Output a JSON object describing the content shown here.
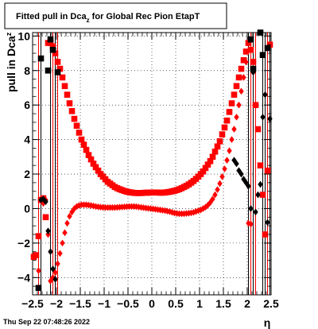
{
  "chart_data": {
    "type": "scatter",
    "title_main": "Fitted pull in Dca",
    "title_sub": "z",
    "title_rest": " for Global Rec Pion EtapT",
    "ylabel_main": "pull in Dca",
    "ylabel_sub": "z",
    "xlabel": "η",
    "footer": "Thu Sep 22 07:48:26 2022",
    "xlim": [
      -2.5,
      2.5
    ],
    "ylim": [
      -5,
      10.2
    ],
    "xticks": [
      -2.5,
      -2,
      -1.5,
      -1,
      -0.5,
      0,
      0.5,
      1,
      1.5,
      2,
      2.5
    ],
    "xtick_labels": [
      "−2.5",
      "−2",
      "−1.5",
      "−1",
      "−0.5",
      "0",
      "0.5",
      "1",
      "1.5",
      "2",
      "2.5"
    ],
    "yticks": [
      -4,
      -2,
      0,
      2,
      4,
      6,
      8,
      10
    ],
    "ytick_labels": [
      "−4",
      "−2",
      "0",
      "2",
      "4",
      "6",
      "8",
      "10"
    ],
    "grid": true,
    "colors": {
      "red": "#ff0000",
      "black": "#000000"
    },
    "series": [
      {
        "marker": "square",
        "color": "#ff0000",
        "x": [
          -2.475,
          -2.425,
          -2.375,
          -2.325,
          -2.275,
          -2.225,
          -2.175,
          -2.125,
          -2.075,
          -2.025,
          -1.975,
          -1.925,
          -1.875,
          -1.825,
          -1.775,
          -1.725,
          -1.675,
          -1.625,
          -1.575,
          -1.525,
          -1.475,
          -1.425,
          -1.375,
          -1.325,
          -1.275,
          -1.225,
          -1.175,
          -1.125,
          -1.075,
          -1.025,
          -0.975,
          -0.925,
          -0.875,
          -0.825,
          -0.775,
          -0.725,
          -0.675,
          -0.625,
          -0.575,
          -0.525,
          -0.475,
          -0.425,
          -0.375,
          -0.325,
          -0.275,
          -0.225,
          -0.175,
          -0.125,
          -0.075,
          -0.025,
          0.025,
          0.075,
          0.125,
          0.175,
          0.225,
          0.275,
          0.325,
          0.375,
          0.425,
          0.475,
          0.525,
          0.575,
          0.625,
          0.675,
          0.725,
          0.775,
          0.825,
          0.875,
          0.925,
          0.975,
          1.025,
          1.075,
          1.125,
          1.175,
          1.225,
          1.275,
          1.325,
          1.375,
          1.425,
          1.475,
          1.525,
          1.575,
          1.625,
          1.675,
          1.725,
          1.775,
          1.825,
          1.875,
          1.925,
          1.975,
          2.025,
          2.075,
          2.125,
          2.175,
          2.225,
          2.275,
          2.325,
          2.375,
          2.425,
          2.475
        ],
        "y": [
          -2.8,
          -2.7,
          -1.6,
          0.5,
          0.6,
          -0.5,
          9.6,
          9.6,
          9.4,
          9.0,
          8.5,
          8.1,
          7.6,
          7.1,
          6.6,
          6.1,
          5.65,
          5.2,
          4.8,
          4.4,
          4.0,
          3.7,
          3.4,
          3.1,
          2.85,
          2.6,
          2.4,
          2.2,
          2.0,
          1.85,
          1.7,
          1.55,
          1.45,
          1.35,
          1.25,
          1.18,
          1.12,
          1.07,
          1.02,
          0.98,
          0.95,
          0.93,
          0.91,
          0.9,
          0.9,
          0.9,
          0.91,
          0.92,
          0.92,
          0.93,
          0.93,
          0.93,
          0.93,
          0.92,
          0.92,
          0.93,
          0.95,
          0.97,
          1.0,
          1.03,
          1.07,
          1.12,
          1.18,
          1.25,
          1.32,
          1.4,
          1.5,
          1.6,
          1.72,
          1.85,
          2.0,
          2.15,
          2.35,
          2.55,
          2.75,
          3.0,
          3.3,
          3.6,
          3.9,
          4.3,
          4.7,
          5.1,
          5.6,
          6.1,
          6.6,
          7.1,
          7.6,
          8.1,
          8.6,
          9.1,
          9.6,
          9.2,
          8.5,
          6.0,
          4.6,
          2.5,
          0.8,
          -1.5,
          2.2,
          9.5
        ]
      },
      {
        "marker": "square",
        "color": "#000000",
        "x": [
          -2.375,
          -2.325,
          -2.175,
          -2.125,
          -2.075,
          -1.975,
          2.075,
          2.125,
          2.275,
          2.325,
          2.425
        ],
        "y": [
          -4.6,
          8.7,
          8.0,
          9.8,
          9.2,
          7.9,
          9.8,
          8.1,
          10.2,
          8.9,
          9.3
        ]
      },
      {
        "marker": "diamond",
        "color": "#ff0000",
        "x": [
          -2.375,
          -2.325,
          -2.275,
          -2.225,
          -2.175,
          -2.125,
          -2.075,
          -2.025,
          -1.975,
          -1.925,
          -1.875,
          -1.825,
          -1.775,
          -1.725,
          -1.675,
          -1.625,
          -1.575,
          -1.525,
          -1.475,
          -1.425,
          -1.375,
          -1.325,
          -1.275,
          -1.225,
          -1.175,
          -1.125,
          -1.075,
          -1.025,
          -0.975,
          -0.925,
          -0.875,
          -0.825,
          -0.775,
          -0.725,
          -0.675,
          -0.625,
          -0.575,
          -0.525,
          -0.475,
          -0.425,
          -0.375,
          -0.325,
          -0.275,
          -0.225,
          -0.175,
          -0.125,
          -0.075,
          -0.025,
          0.025,
          0.075,
          0.125,
          0.175,
          0.225,
          0.275,
          0.325,
          0.375,
          0.425,
          0.475,
          0.525,
          0.575,
          0.625,
          0.675,
          0.725,
          0.775,
          0.825,
          0.875,
          0.925,
          0.975,
          1.025,
          1.075,
          1.125,
          1.175,
          1.225,
          1.275,
          1.325,
          1.375,
          1.425,
          1.475,
          1.525,
          1.575,
          1.625,
          1.675,
          1.725,
          1.775,
          1.825,
          1.875,
          1.925,
          1.975,
          2.025,
          2.075
        ],
        "y": [
          -3.6,
          0.45,
          0.3,
          0.5,
          -1.5,
          -4.2,
          -4.0,
          -3.7,
          -3.2,
          -2.6,
          -2.0,
          -1.4,
          -0.85,
          -0.45,
          -0.2,
          0.0,
          0.12,
          0.18,
          0.22,
          0.22,
          0.22,
          0.2,
          0.18,
          0.15,
          0.12,
          0.1,
          0.08,
          0.07,
          0.06,
          0.06,
          0.06,
          0.06,
          0.06,
          0.07,
          0.08,
          0.09,
          0.1,
          0.11,
          0.12,
          0.12,
          0.12,
          0.11,
          0.09,
          0.07,
          0.05,
          0.03,
          0.01,
          0.0,
          -0.02,
          -0.04,
          -0.06,
          -0.08,
          -0.1,
          -0.12,
          -0.15,
          -0.18,
          -0.22,
          -0.26,
          -0.28,
          -0.3,
          -0.3,
          -0.3,
          -0.28,
          -0.27,
          -0.25,
          -0.22,
          -0.17,
          -0.12,
          -0.08,
          0.0,
          0.08,
          0.2,
          0.35,
          0.55,
          0.8,
          1.1,
          1.45,
          1.85,
          2.3,
          2.8,
          3.35,
          4.0,
          4.6,
          5.3,
          6.0,
          6.8,
          7.6,
          8.5,
          -0.85,
          -0.9
        ]
      },
      {
        "marker": "diamond",
        "color": "#000000",
        "x": [
          -2.325,
          -2.275,
          -2.225,
          -2.175,
          -2.125,
          -2.075,
          -2.025,
          1.725,
          1.775,
          1.825,
          1.875,
          1.925,
          1.975,
          2.025,
          2.075,
          2.125,
          2.175,
          2.225,
          2.275,
          2.325,
          2.375,
          2.425,
          2.475
        ],
        "y": [
          0.5,
          0.55,
          0.4,
          -1.3,
          -2.5,
          -3.5,
          -4.1,
          2.8,
          2.6,
          2.2,
          2.0,
          1.7,
          1.5,
          1.3,
          0.0,
          7.9,
          -0.2,
          0.8,
          1.4,
          5.3,
          6.6,
          -0.8,
          5.2
        ]
      }
    ],
    "vertical_error_lines": [
      {
        "x": -2.375,
        "color": "#ff0000"
      },
      {
        "x": -2.325,
        "color": "#000000"
      },
      {
        "x": -2.125,
        "color": "#000000"
      },
      {
        "x": -2.075,
        "color": "#ff0000"
      },
      {
        "x": -2.025,
        "color": "#000000"
      },
      {
        "x": -1.975,
        "color": "#ff0000"
      },
      {
        "x": 2.025,
        "color": "#000000"
      },
      {
        "x": 2.075,
        "color": "#ff0000"
      },
      {
        "x": 2.125,
        "color": "#000000"
      },
      {
        "x": 2.175,
        "color": "#ff0000"
      },
      {
        "x": 2.325,
        "color": "#000000"
      },
      {
        "x": 2.375,
        "color": "#000000"
      },
      {
        "x": 2.425,
        "color": "#ff0000"
      },
      {
        "x": 2.475,
        "color": "#000000"
      }
    ]
  }
}
